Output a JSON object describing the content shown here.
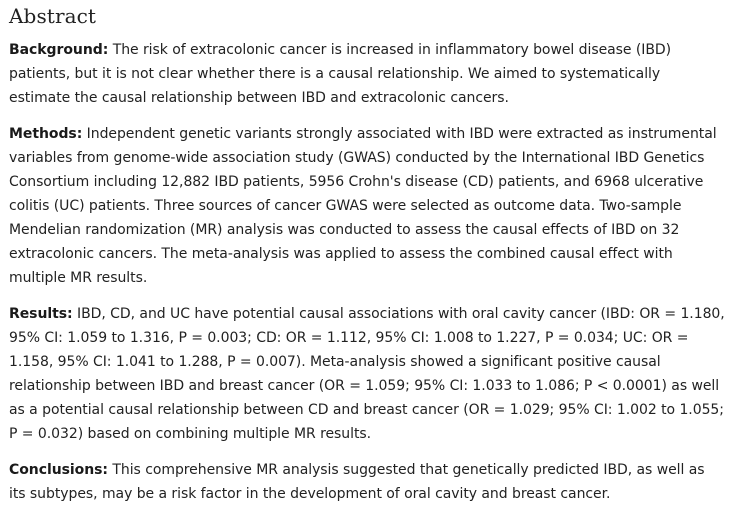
{
  "abstract": {
    "title": "Abstract",
    "sections": [
      {
        "heading": "Background:",
        "text": "The risk of extracolonic cancer is increased in inflammatory bowel disease (IBD) patients, but it is not clear whether there is a causal relationship. We aimed to systematically estimate the causal relationship between IBD and extracolonic cancers."
      },
      {
        "heading": "Methods:",
        "text": "Independent genetic variants strongly associated with IBD were extracted as instrumental variables from genome-wide association study (GWAS) conducted by the International IBD Genetics Consortium including 12,882 IBD patients, 5956 Crohn's disease (CD) patients, and 6968 ulcerative colitis (UC) patients. Three sources of cancer GWAS were selected as outcome data. Two-sample Mendelian randomization (MR) analysis was conducted to assess the causal effects of IBD on 32 extracolonic cancers. The meta-analysis was applied to assess the combined causal effect with multiple MR results."
      },
      {
        "heading": "Results:",
        "text": "IBD, CD, and UC have potential causal associations with oral cavity cancer (IBD: OR = 1.180, 95% CI: 1.059 to 1.316, P = 0.003; CD: OR = 1.112, 95% CI: 1.008 to 1.227, P = 0.034; UC: OR = 1.158, 95% CI: 1.041 to 1.288, P = 0.007). Meta-analysis showed a significant positive causal relationship between IBD and breast cancer (OR = 1.059; 95% CI: 1.033 to 1.086; P < 0.0001) as well as a potential causal relationship between CD and breast cancer (OR = 1.029; 95% CI: 1.002 to 1.055; P = 0.032) based on combining multiple MR results."
      },
      {
        "heading": "Conclusions:",
        "text": "This comprehensive MR analysis suggested that genetically predicted IBD, as well as its subtypes, may be a risk factor in the development of oral cavity and breast cancer."
      }
    ]
  }
}
